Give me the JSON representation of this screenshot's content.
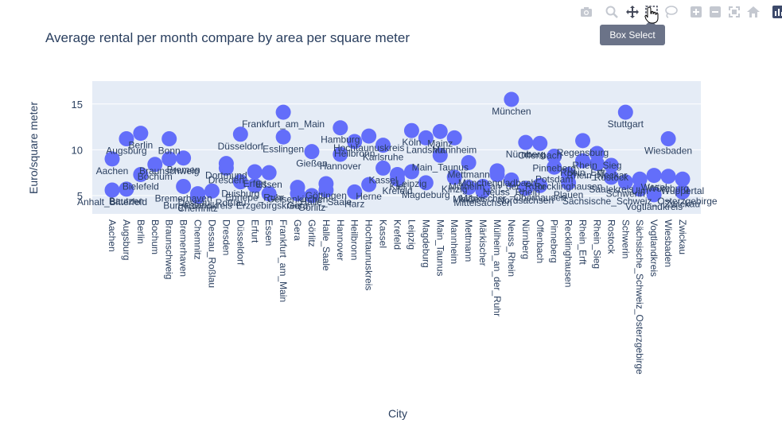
{
  "toolbar": {
    "buttons": [
      {
        "name": "camera-icon",
        "icon": "camera"
      },
      {
        "name": "zoom-icon",
        "icon": "magnifier"
      },
      {
        "name": "pan-icon",
        "icon": "move-arrows"
      },
      {
        "name": "box-select-icon",
        "icon": "dashed-box"
      },
      {
        "name": "lasso-select-icon",
        "icon": "lasso"
      },
      {
        "name": "zoom-in-icon",
        "icon": "plus-box"
      },
      {
        "name": "zoom-out-icon",
        "icon": "minus-box"
      },
      {
        "name": "autoscale-icon",
        "icon": "expand-corners"
      },
      {
        "name": "reset-axes-icon",
        "icon": "home"
      },
      {
        "name": "plotly-logo-icon",
        "icon": "bar-logo"
      }
    ],
    "tooltip": "Box Select",
    "icon_color": "#c4c8d0",
    "active_color": "#44495a"
  },
  "chart_data": {
    "type": "scatter",
    "title": "Average rental per month compare by area per square meter",
    "xlabel": "City",
    "ylabel": "Euro/square meter",
    "ylim": [
      3,
      17.5
    ],
    "yticks": [
      5,
      10,
      15
    ],
    "grid": true,
    "marker_color": "#636efa",
    "plot_bg": "#e5ecf6",
    "categories": [
      "Aachen",
      "Augsburg",
      "Berlin",
      "Bochum",
      "Braunschweig",
      "Bremerhaven",
      "Chemnitz",
      "Dessau_Roßlau",
      "Dresden",
      "Düsseldorf",
      "Erfurt",
      "Essen",
      "Frankfurt_am_Main",
      "Gera",
      "Görlitz",
      "Halle_Saale",
      "Hannover",
      "Heilbronn",
      "Hochtaunuskreis",
      "Kassel",
      "Krefeld",
      "Leipzig",
      "Magdeburg",
      "Main_Taunus",
      "Mannheim",
      "Mettmann",
      "Märkischer",
      "Mülheim_an_der_Ruhr",
      "Neuss_Rhein",
      "Nürnberg",
      "Offenbach",
      "Pinneberg",
      "Recklinghausen",
      "Rhein_Erft",
      "Rhein_Sieg",
      "Rostock",
      "Schwerin",
      "Sächsische_Schweiz_Osterzgebirge",
      "Vogtlandkreis",
      "Wiesbaden",
      "Zwickau"
    ],
    "points": [
      {
        "x": "Aachen",
        "y": 9.0,
        "label": "Aachen"
      },
      {
        "x": "Aachen",
        "y": 5.6,
        "label": "Anhalt_Bitterfeld"
      },
      {
        "x": "Augsburg",
        "y": 11.2,
        "label": "Augsburg"
      },
      {
        "x": "Augsburg",
        "y": 5.7,
        "label": "Bautzen"
      },
      {
        "x": "Berlin",
        "y": 11.8,
        "label": "Berlin"
      },
      {
        "x": "Berlin",
        "y": 7.3,
        "label": "Bielefeld"
      },
      {
        "x": "Bochum",
        "y": 8.4,
        "label": "Bochum"
      },
      {
        "x": "Braunschweig",
        "y": 11.2,
        "label": "Bonn"
      },
      {
        "x": "Braunschweig",
        "y": 9.0,
        "label": "Braunschweig"
      },
      {
        "x": "Bremerhaven",
        "y": 9.1,
        "label": "Bremen"
      },
      {
        "x": "Bremerhaven",
        "y": 6.0,
        "label": "Bremerhaven"
      },
      {
        "x": "Chemnitz",
        "y": 5.2,
        "label": "Burgenlandkreis"
      },
      {
        "x": "Chemnitz",
        "y": 4.9,
        "label": "Chemnitz"
      },
      {
        "x": "Dessau_Roßlau",
        "y": 5.5,
        "label": "Dessau_Roßlau"
      },
      {
        "x": "Dresden",
        "y": 8.0,
        "label": "Dresden"
      },
      {
        "x": "Dresden",
        "y": 8.5,
        "label": "Dortmund"
      },
      {
        "x": "Düsseldorf",
        "y": 11.7,
        "label": "Düsseldorf"
      },
      {
        "x": "Düsseldorf",
        "y": 6.5,
        "label": "Duisburg"
      },
      {
        "x": "Erfurt",
        "y": 7.6,
        "label": "Erfurt"
      },
      {
        "x": "Erfurt",
        "y": 6.1,
        "label": "Ennepe_Ruhr"
      },
      {
        "x": "Essen",
        "y": 7.5,
        "label": "Essen"
      },
      {
        "x": "Essen",
        "y": 5.2,
        "label": "Erzgebirgskreis"
      },
      {
        "x": "Frankfurt_am_Main",
        "y": 14.1,
        "label": "Frankfurt_am_Main"
      },
      {
        "x": "Frankfurt_am_Main",
        "y": 11.4,
        "label": "Esslingen"
      },
      {
        "x": "Gera",
        "y": 5.9,
        "label": "Gelsenkirchen"
      },
      {
        "x": "Gera",
        "y": 5.2,
        "label": "Gera"
      },
      {
        "x": "Görlitz",
        "y": 9.8,
        "label": "Gießen"
      },
      {
        "x": "Görlitz",
        "y": 5.0,
        "label": "Görlitz"
      },
      {
        "x": "Halle_Saale",
        "y": 5.6,
        "label": "Halle_Saale"
      },
      {
        "x": "Halle_Saale",
        "y": 6.3,
        "label": "Göttingen"
      },
      {
        "x": "Hannover",
        "y": 12.4,
        "label": "Hamburg"
      },
      {
        "x": "Hannover",
        "y": 9.5,
        "label": "Hannover"
      },
      {
        "x": "Heilbronn",
        "y": 10.9,
        "label": "Heilbronn"
      },
      {
        "x": "Heilbronn",
        "y": 5.4,
        "label": "Harz"
      },
      {
        "x": "Hochtaunuskreis",
        "y": 11.5,
        "label": "Hochtaunuskreis"
      },
      {
        "x": "Hochtaunuskreis",
        "y": 6.2,
        "label": "Herne"
      },
      {
        "x": "Kassel",
        "y": 10.5,
        "label": "Karlsruhe"
      },
      {
        "x": "Kassel",
        "y": 8.0,
        "label": "Kassel"
      },
      {
        "x": "Krefeld",
        "y": 7.3,
        "label": "Kiel"
      },
      {
        "x": "Krefeld",
        "y": 6.8,
        "label": "Krefeld"
      },
      {
        "x": "Leipzig",
        "y": 12.1,
        "label": "Köln"
      },
      {
        "x": "Leipzig",
        "y": 7.6,
        "label": "Leipzig"
      },
      {
        "x": "Magdeburg",
        "y": 11.3,
        "label": "Landshut"
      },
      {
        "x": "Magdeburg",
        "y": 6.4,
        "label": "Magdeburg"
      },
      {
        "x": "Main_Taunus",
        "y": 9.4,
        "label": "Main_Taunus"
      },
      {
        "x": "Main_Taunus",
        "y": 12.0,
        "label": "Mainz"
      },
      {
        "x": "Mannheim",
        "y": 11.3,
        "label": "Mannheim"
      },
      {
        "x": "Mannheim",
        "y": 7.0,
        "label": "Kinzig"
      },
      {
        "x": "Mettmann",
        "y": 8.6,
        "label": "Mettmann"
      },
      {
        "x": "Mettmann",
        "y": 5.9,
        "label": "Meißen"
      },
      {
        "x": "Märkischer",
        "y": 6.0,
        "label": "Märkischer"
      },
      {
        "x": "Märkischer",
        "y": 5.5,
        "label": "Mittelsachsen"
      },
      {
        "x": "Mülheim_an_der_Ruhr",
        "y": 7.7,
        "label": "Mönchengladbach"
      },
      {
        "x": "Mülheim_an_der_Ruhr",
        "y": 7.3,
        "label": "Mülheim_an_der_Ruhr"
      },
      {
        "x": "Neuss_Rhein",
        "y": 15.5,
        "label": "München"
      },
      {
        "x": "Neuss_Rhein",
        "y": 6.7,
        "label": "Neuss_Rhein"
      },
      {
        "x": "Nürnberg",
        "y": 10.8,
        "label": "Nürnberg"
      },
      {
        "x": "Nürnberg",
        "y": 5.8,
        "label": "Nordsachsen"
      },
      {
        "x": "Offenbach",
        "y": 10.7,
        "label": "Offenbach"
      },
      {
        "x": "Offenbach",
        "y": 6.1,
        "label": "Oberhausen"
      },
      {
        "x": "Pinneberg",
        "y": 9.3,
        "label": "Pinneberg"
      },
      {
        "x": "Pinneberg",
        "y": 8.1,
        "label": "Potsdam"
      },
      {
        "x": "Recklinghausen",
        "y": 7.3,
        "label": "Recklinghausen"
      },
      {
        "x": "Recklinghausen",
        "y": 6.4,
        "label": "Plauen"
      },
      {
        "x": "Rhein_Erft",
        "y": 11.0,
        "label": "Regensburg"
      },
      {
        "x": "Rhein_Erft",
        "y": 8.8,
        "label": "Rhein_Erft"
      },
      {
        "x": "Rhein_Sieg",
        "y": 9.6,
        "label": "Rhein_Sieg"
      },
      {
        "x": "Rhein_Sieg",
        "y": 8.5,
        "label": "Rhein_Neckar"
      },
      {
        "x": "Rostock",
        "y": 8.3,
        "label": "Rostock"
      },
      {
        "x": "Rostock",
        "y": 7.0,
        "label": "Saalekreis"
      },
      {
        "x": "Schwerin",
        "y": 14.1,
        "label": "Stuttgart"
      },
      {
        "x": "Schwerin",
        "y": 6.5,
        "label": "Schwerin"
      },
      {
        "x": "Sächsische_Schweiz_Osterzgebirge",
        "y": 5.7,
        "label": "Sächsische_Schweiz_Osterzgebirge"
      },
      {
        "x": "Sächsische_Schweiz_Osterzgebirge",
        "y": 6.8,
        "label": "Ulm"
      },
      {
        "x": "Vogtlandkreis",
        "y": 5.1,
        "label": "Vogtlandkreis"
      },
      {
        "x": "Vogtlandkreis",
        "y": 7.2,
        "label": "Wesel"
      },
      {
        "x": "Wiesbaden",
        "y": 11.2,
        "label": "Wiesbaden"
      },
      {
        "x": "Wiesbaden",
        "y": 7.1,
        "label": "Würzburg"
      },
      {
        "x": "Zwickau",
        "y": 6.8,
        "label": "Wuppertal"
      },
      {
        "x": "Zwickau",
        "y": 5.4,
        "label": "Zwickau"
      }
    ]
  }
}
